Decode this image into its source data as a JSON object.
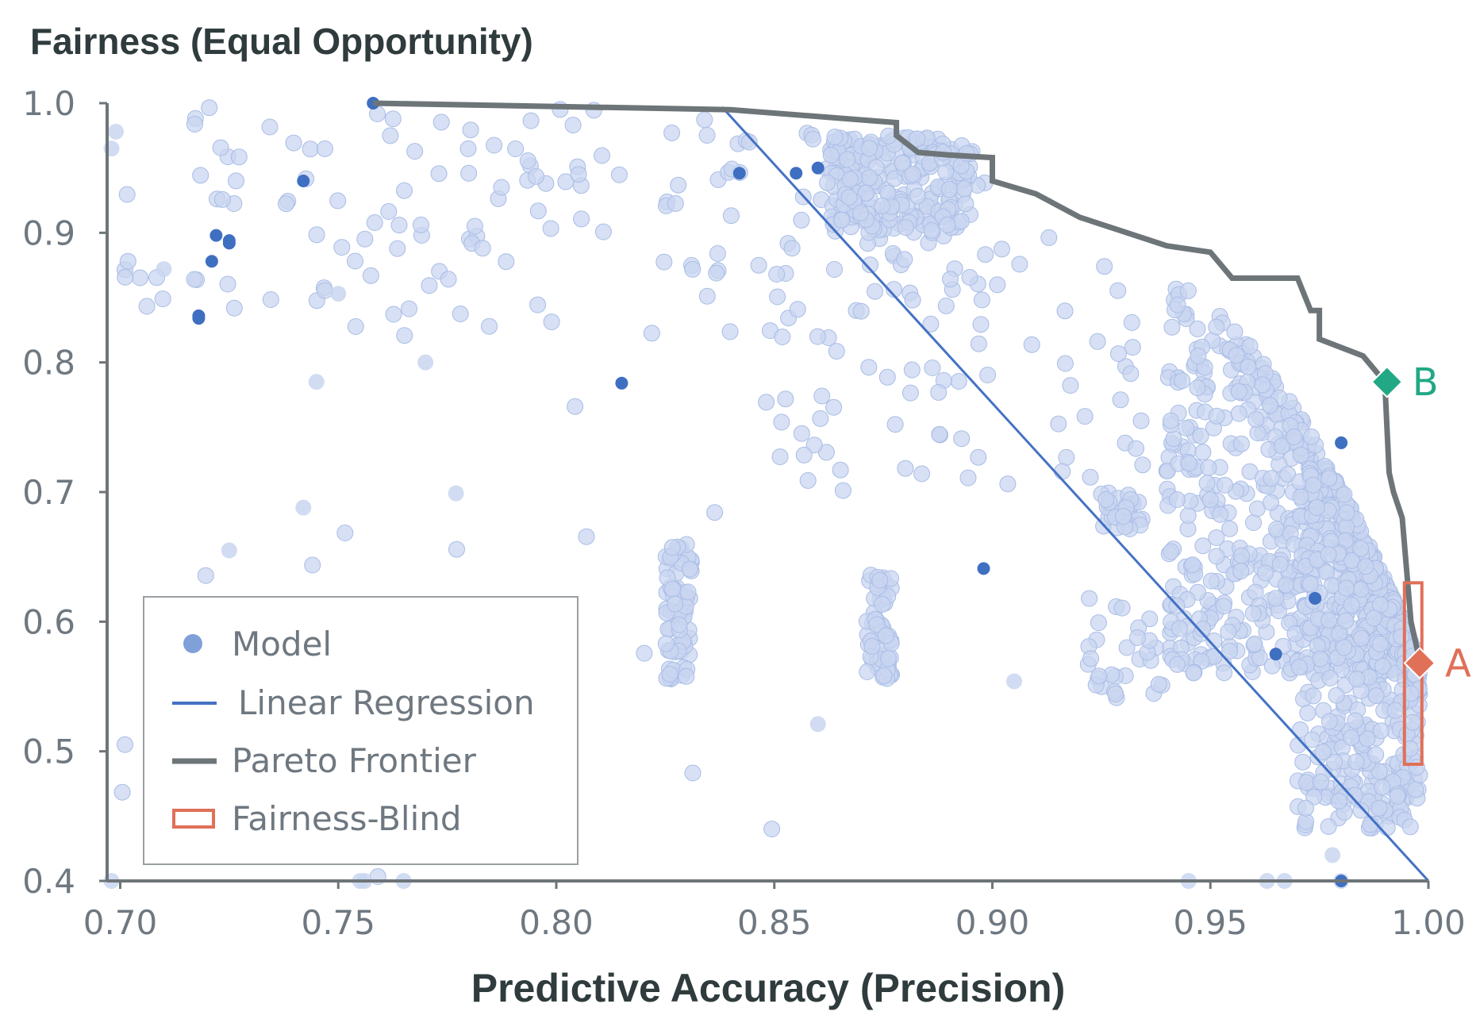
{
  "chart_data": {
    "type": "scatter",
    "title": "Fairness (Equal Opportunity)",
    "xlabel": "Predictive Accuracy (Precision)",
    "ylabel": "Fairness (Equal Opportunity)",
    "xlim": [
      0.697,
      1.0
    ],
    "ylim": [
      0.4,
      1.0
    ],
    "x_ticks": [
      "0.70",
      "0.75",
      "0.80",
      "0.85",
      "0.90",
      "0.95",
      "1.00"
    ],
    "x_tick_values": [
      0.7,
      0.75,
      0.8,
      0.85,
      0.9,
      0.95,
      1.0
    ],
    "y_ticks": [
      "0.4",
      "0.5",
      "0.6",
      "0.7",
      "0.8",
      "0.9",
      "1.0"
    ],
    "y_tick_values": [
      0.4,
      0.5,
      0.6,
      0.7,
      0.8,
      0.9,
      1.0
    ],
    "legend": {
      "placement": "bottom-left",
      "entries": [
        {
          "label": "Model",
          "kind": "dot",
          "color": "#7fa0d8"
        },
        {
          "label": "Linear Regression",
          "kind": "line",
          "color": "#4472c4"
        },
        {
          "label": "Pareto Frontier",
          "kind": "line",
          "color": "#6d7578"
        },
        {
          "label": "Fairness-Blind",
          "kind": "rect",
          "color": "#e07058"
        }
      ]
    },
    "colors": {
      "model_light": "#c9d6f0",
      "model_dark": "#3f6fc1",
      "regression": "#4472c4",
      "pareto": "#6d7578",
      "fairness_blind": "#e07058",
      "marker_a": "#e07058",
      "marker_b": "#22a884"
    },
    "regression_line": [
      [
        0.838,
        0.997
      ],
      [
        1.0,
        0.4
      ]
    ],
    "pareto_frontier": [
      [
        0.758,
        1.0
      ],
      [
        0.84,
        0.995
      ],
      [
        0.878,
        0.985
      ],
      [
        0.878,
        0.975
      ],
      [
        0.883,
        0.962
      ],
      [
        0.89,
        0.96
      ],
      [
        0.9,
        0.958
      ],
      [
        0.9,
        0.94
      ],
      [
        0.91,
        0.93
      ],
      [
        0.92,
        0.912
      ],
      [
        0.94,
        0.89
      ],
      [
        0.95,
        0.885
      ],
      [
        0.955,
        0.865
      ],
      [
        0.97,
        0.865
      ],
      [
        0.973,
        0.84
      ],
      [
        0.975,
        0.84
      ],
      [
        0.975,
        0.818
      ],
      [
        0.985,
        0.805
      ],
      [
        0.99,
        0.785
      ],
      [
        0.991,
        0.715
      ],
      [
        0.992,
        0.7
      ],
      [
        0.994,
        0.68
      ],
      [
        0.995,
        0.64
      ],
      [
        0.996,
        0.6
      ],
      [
        0.998,
        0.57
      ]
    ],
    "fairness_blind_box": {
      "x": [
        0.9945,
        0.9985
      ],
      "y": [
        0.49,
        0.63
      ]
    },
    "markers": [
      {
        "label": "A",
        "x": 0.998,
        "y": 0.568,
        "color": "#e07058"
      },
      {
        "label": "B",
        "x": 0.9905,
        "y": 0.785,
        "color": "#22a884"
      }
    ],
    "highlighted_models": [
      [
        0.758,
        1.0
      ],
      [
        0.742,
        0.94
      ],
      [
        0.722,
        0.898
      ],
      [
        0.725,
        0.894
      ],
      [
        0.725,
        0.892
      ],
      [
        0.721,
        0.878
      ],
      [
        0.718,
        0.836
      ],
      [
        0.718,
        0.834
      ],
      [
        0.815,
        0.784
      ],
      [
        0.842,
        0.946
      ],
      [
        0.855,
        0.946
      ],
      [
        0.86,
        0.95
      ],
      [
        0.898,
        0.641
      ],
      [
        0.965,
        0.575
      ],
      [
        0.974,
        0.618
      ],
      [
        0.98,
        0.738
      ],
      [
        0.98,
        0.4
      ]
    ],
    "model_clusters": [
      {
        "x": [
          0.7,
          0.9
        ],
        "y": [
          0.82,
          1.0
        ],
        "count": 160
      },
      {
        "x": [
          0.85,
          0.95
        ],
        "y": [
          0.7,
          0.9
        ],
        "count": 90
      },
      {
        "x": [
          0.94,
          0.998
        ],
        "y": [
          0.56,
          0.86
        ],
        "count": 600
      },
      {
        "x": [
          0.97,
          0.998
        ],
        "y": [
          0.44,
          0.72
        ],
        "count": 500
      },
      {
        "x": [
          0.862,
          0.895
        ],
        "y": [
          0.9,
          0.975
        ],
        "count": 220
      },
      {
        "x": [
          0.825,
          0.831
        ],
        "y": [
          0.55,
          0.66
        ],
        "count": 70
      },
      {
        "x": [
          0.871,
          0.877
        ],
        "y": [
          0.555,
          0.64
        ],
        "count": 60
      },
      {
        "x": [
          0.925,
          0.935
        ],
        "y": [
          0.67,
          0.7
        ],
        "count": 30
      },
      {
        "x": [
          0.92,
          0.94
        ],
        "y": [
          0.54,
          0.62
        ],
        "count": 30
      },
      {
        "x": [
          0.7,
          0.85
        ],
        "y": [
          0.4,
          0.8
        ],
        "count": 20
      }
    ],
    "extra_models": [
      [
        0.698,
        0.4
      ],
      [
        0.698,
        0.965
      ],
      [
        0.699,
        0.978
      ],
      [
        0.71,
        0.872
      ],
      [
        0.725,
        0.655
      ],
      [
        0.742,
        0.688
      ],
      [
        0.745,
        0.785
      ],
      [
        0.75,
        0.853
      ],
      [
        0.755,
        0.4
      ],
      [
        0.756,
        0.4
      ],
      [
        0.765,
        0.4
      ],
      [
        0.77,
        0.8
      ],
      [
        0.777,
        0.699
      ],
      [
        0.86,
        0.521
      ],
      [
        0.905,
        0.554
      ],
      [
        0.945,
        0.4
      ],
      [
        0.963,
        0.4
      ],
      [
        0.967,
        0.4
      ],
      [
        0.978,
        0.42
      ],
      [
        0.98,
        0.4
      ]
    ]
  }
}
